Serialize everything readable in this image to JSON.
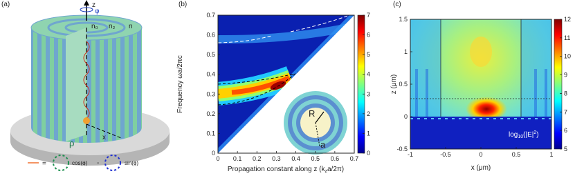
{
  "panel_a": {
    "label": "(a)",
    "axis_z": "z",
    "angle": "φ",
    "n0": "n₀",
    "n2": "n₂",
    "n1": "n",
    "rho": "ρ",
    "axis_x": "x",
    "legend": {
      "equals": "=",
      "cos": "cos(ϕ)",
      "minus": "-",
      "sin": "sin(ϕ)"
    }
  },
  "panel_b": {
    "label": "(b)",
    "y_label": "Frequency ωa/2πc",
    "x_label": "Propagation constant along z (k",
    "x_label_sub": "z",
    "x_label_end": "a/2π)",
    "xticks": [
      0,
      0.1,
      0.2,
      0.3,
      0.4,
      0.5,
      0.6,
      0.7
    ],
    "yticks": [
      0,
      0.1,
      0.2,
      0.3,
      0.4,
      0.5,
      0.6,
      0.7
    ],
    "colorbar_ticks": [
      0,
      1,
      2,
      3,
      4,
      5,
      6,
      7
    ],
    "inset_r": "R",
    "inset_a": "a"
  },
  "panel_c": {
    "label": "(c)",
    "x_label": "x (μm)",
    "y_label": "z (μm)",
    "xticks": [
      -1,
      -0.5,
      0,
      0.5,
      1
    ],
    "yticks": [
      -0.5,
      0,
      0.5,
      1,
      1.5
    ],
    "colorbar_ticks": [
      5,
      6,
      7,
      8,
      9,
      10,
      11,
      12
    ],
    "annotation": {
      "log": "log",
      "sub": "10",
      "mid": "(|E|",
      "sup": "2",
      "end": ")"
    }
  }
}
